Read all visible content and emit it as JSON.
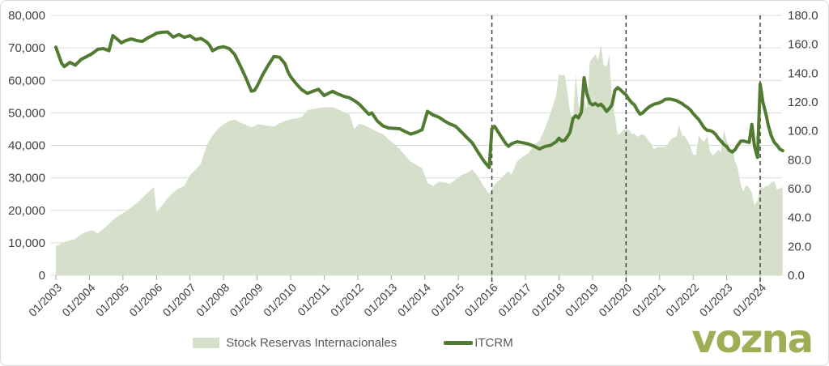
{
  "logo": {
    "text": "vozna",
    "color": "#9fae55"
  },
  "legend": {
    "items": [
      {
        "label": "Stock Reservas Internacionales"
      },
      {
        "label": "ITCRM"
      }
    ]
  },
  "colors": {
    "area_fill": "#d5dfc9",
    "line": "#507b31",
    "grid": "#d9d9d9",
    "axis_text": "#3f3f3f",
    "dashed_line": "#3f3f3f",
    "tick": "#a6a6a6",
    "legend_text": "#595959"
  },
  "chart_data": {
    "type": "area+line",
    "title": "",
    "grid": true,
    "legend_position": "bottom",
    "left_axis": {
      "min": 0,
      "max": 80000,
      "step": 10000,
      "labels": [
        "0",
        "10,000",
        "20,000",
        "30,000",
        "40,000",
        "50,000",
        "60,000",
        "70,000",
        "80,000"
      ]
    },
    "right_axis": {
      "min": 0,
      "max": 180,
      "step": 20,
      "labels": [
        "0.0",
        "20.0",
        "40.0",
        "60.0",
        "80.0",
        "100.0",
        "120.0",
        "140.0",
        "160.0",
        "180.0"
      ]
    },
    "x_axis": {
      "labels": [
        "01/2003",
        "01/2004",
        "01/2005",
        "01/2006",
        "01/2007",
        "01/2008",
        "01/2009",
        "01/2010",
        "01/2011",
        "01/2012",
        "01/2013",
        "01/2014",
        "01/2015",
        "01/2016",
        "01/2017",
        "01/2018",
        "01/2019",
        "01/2020",
        "01/2021",
        "01/2022",
        "01/2023",
        "01/2024"
      ],
      "years": [
        2003,
        2004,
        2005,
        2006,
        2007,
        2008,
        2009,
        2010,
        2011,
        2012,
        2013,
        2014,
        2015,
        2016,
        2017,
        2018,
        2019,
        2020,
        2021,
        2022,
        2023,
        2024
      ]
    },
    "vlines": [
      2016.0,
      2020.0,
      2024.0
    ],
    "x": [
      2003.0,
      2003.17,
      2003.25,
      2003.42,
      2003.58,
      2003.75,
      2003.92,
      2004.08,
      2004.25,
      2004.42,
      2004.58,
      2004.7,
      2004.83,
      2004.95,
      2005.08,
      2005.25,
      2005.42,
      2005.58,
      2005.75,
      2005.92,
      2006.0,
      2006.17,
      2006.33,
      2006.5,
      2006.67,
      2006.83,
      2007.0,
      2007.17,
      2007.33,
      2007.5,
      2007.58,
      2007.67,
      2007.83,
      2008.0,
      2008.17,
      2008.33,
      2008.5,
      2008.67,
      2008.83,
      2008.92,
      2009.0,
      2009.17,
      2009.33,
      2009.5,
      2009.67,
      2009.83,
      2009.92,
      2010.0,
      2010.17,
      2010.33,
      2010.5,
      2010.67,
      2010.83,
      2010.92,
      2011.0,
      2011.17,
      2011.25,
      2011.42,
      2011.58,
      2011.75,
      2011.9,
      2012.05,
      2012.17,
      2012.33,
      2012.42,
      2012.58,
      2012.75,
      2012.92,
      2013.08,
      2013.25,
      2013.42,
      2013.58,
      2013.75,
      2013.92,
      2014.08,
      2014.25,
      2014.42,
      2014.58,
      2014.75,
      2014.92,
      2015.08,
      2015.25,
      2015.42,
      2015.58,
      2015.75,
      2015.92,
      2016.0,
      2016.08,
      2016.25,
      2016.42,
      2016.5,
      2016.58,
      2016.75,
      2016.92,
      2017.08,
      2017.25,
      2017.42,
      2017.58,
      2017.75,
      2017.92,
      2018.0,
      2018.08,
      2018.17,
      2018.25,
      2018.33,
      2018.42,
      2018.5,
      2018.58,
      2018.67,
      2018.75,
      2018.83,
      2018.92,
      2019.0,
      2019.08,
      2019.17,
      2019.25,
      2019.33,
      2019.42,
      2019.5,
      2019.58,
      2019.67,
      2019.75,
      2019.83,
      2019.92,
      2020.0,
      2020.08,
      2020.17,
      2020.25,
      2020.33,
      2020.42,
      2020.5,
      2020.58,
      2020.67,
      2020.75,
      2020.83,
      2020.92,
      2021.0,
      2021.08,
      2021.17,
      2021.25,
      2021.33,
      2021.42,
      2021.5,
      2021.58,
      2021.67,
      2021.75,
      2021.83,
      2021.92,
      2022.0,
      2022.08,
      2022.17,
      2022.25,
      2022.33,
      2022.42,
      2022.5,
      2022.58,
      2022.67,
      2022.75,
      2022.83,
      2022.92,
      2023.0,
      2023.08,
      2023.17,
      2023.25,
      2023.33,
      2023.42,
      2023.5,
      2023.58,
      2023.67,
      2023.75,
      2023.83,
      2023.92,
      2024.0,
      2024.08,
      2024.17,
      2024.25,
      2024.33,
      2024.42,
      2024.5,
      2024.58,
      2024.67
    ],
    "series": [
      {
        "name": "Stock Reservas Internacionales",
        "type": "area",
        "axis": "left",
        "color": "#d5dfc9",
        "values": [
          8900,
          9800,
          10200,
          10800,
          11200,
          12500,
          13400,
          13900,
          12900,
          14300,
          15800,
          17000,
          18000,
          18800,
          19600,
          20900,
          22300,
          23800,
          25500,
          27200,
          19400,
          21500,
          23800,
          25500,
          26800,
          27500,
          30900,
          32500,
          34500,
          40000,
          41500,
          43000,
          45000,
          46500,
          47500,
          47900,
          47000,
          46300,
          45600,
          45800,
          46500,
          46300,
          46000,
          45800,
          46800,
          47500,
          47800,
          48000,
          48300,
          48800,
          50800,
          51200,
          51500,
          51600,
          51700,
          51800,
          51800,
          51000,
          50300,
          49600,
          45000,
          46700,
          46300,
          45500,
          45000,
          44200,
          43500,
          41800,
          40500,
          38800,
          36800,
          35000,
          34000,
          33000,
          28500,
          27500,
          28800,
          28600,
          28100,
          29500,
          30800,
          31500,
          32500,
          30500,
          27500,
          25100,
          26500,
          28000,
          29500,
          31500,
          32000,
          30900,
          35000,
          36500,
          37500,
          40000,
          41500,
          45000,
          50000,
          55500,
          62000,
          61500,
          61700,
          56600,
          50100,
          48300,
          61800,
          52700,
          49600,
          53900,
          51100,
          65800,
          66800,
          68000,
          66200,
          71000,
          64800,
          64300,
          67900,
          54100,
          48700,
          43300,
          43700,
          44800,
          44900,
          44800,
          43600,
          43600,
          42600,
          43200,
          43400,
          42800,
          41400,
          40500,
          38700,
          39400,
          39500,
          39600,
          39600,
          40400,
          41800,
          42400,
          42600,
          46300,
          43000,
          42800,
          41500,
          39600,
          37200,
          37000,
          43100,
          41700,
          41100,
          42800,
          38200,
          36900,
          37600,
          38700,
          38000,
          44600,
          41600,
          38800,
          39100,
          35000,
          32900,
          27900,
          25800,
          27800,
          26900,
          25300,
          21500,
          23100,
          27600,
          26600,
          27600,
          27600,
          28600,
          29000,
          26400,
          26700,
          27200
        ]
      },
      {
        "name": "ITCRM",
        "type": "line",
        "axis": "right",
        "color": "#507b31",
        "values": [
          158,
          147,
          144.5,
          147.5,
          145.5,
          149.5,
          151.5,
          153.5,
          156.5,
          157,
          155.5,
          166,
          163.5,
          161,
          162.5,
          163.7,
          162.5,
          162,
          164.5,
          166.5,
          167.7,
          168.3,
          168.5,
          165,
          166.7,
          164.8,
          166,
          163.2,
          164,
          161.5,
          159.5,
          155.5,
          157.5,
          158.3,
          157,
          153,
          145,
          136.5,
          127.5,
          128,
          131,
          139,
          145.5,
          151.5,
          151,
          146.5,
          141,
          137.5,
          132.5,
          128.5,
          126,
          127.5,
          128.8,
          126.5,
          124.5,
          126.5,
          127.4,
          125.5,
          124,
          123,
          121,
          118.5,
          115.5,
          111.5,
          112.5,
          107,
          103.5,
          102,
          101.8,
          101.5,
          99.5,
          97.8,
          99,
          100.8,
          113.5,
          111,
          109.5,
          107,
          104.8,
          103.2,
          99.5,
          95.5,
          91.5,
          85.5,
          79.5,
          74.6,
          101.5,
          103.2,
          97,
          91,
          89.3,
          91,
          92.5,
          91.8,
          91,
          89.5,
          87.5,
          89.2,
          90,
          92.5,
          95,
          93,
          93.5,
          96,
          99,
          108.8,
          110.5,
          109,
          113,
          136.8,
          126,
          119.5,
          118,
          119,
          117.5,
          118.5,
          116.5,
          113.5,
          115.5,
          118,
          128,
          130,
          128.5,
          126.5,
          125,
          122,
          119.5,
          118,
          114.5,
          111.6,
          112.5,
          114.5,
          116.3,
          117.5,
          118.5,
          119,
          119.5,
          120.5,
          121.9,
          122,
          122,
          121.5,
          121,
          120,
          119,
          117.5,
          116.3,
          114.5,
          112,
          110,
          107.8,
          105,
          102.2,
          100.4,
          100.2,
          99.5,
          97.6,
          95,
          92.9,
          90.5,
          89.2,
          86.5,
          85.4,
          87,
          90.1,
          92.9,
          93,
          92.5,
          92,
          104.5,
          89.2,
          81.7,
          132.5,
          120,
          111.6,
          103,
          96.6,
          92,
          90.1,
          87.5,
          86.3
        ]
      }
    ]
  }
}
